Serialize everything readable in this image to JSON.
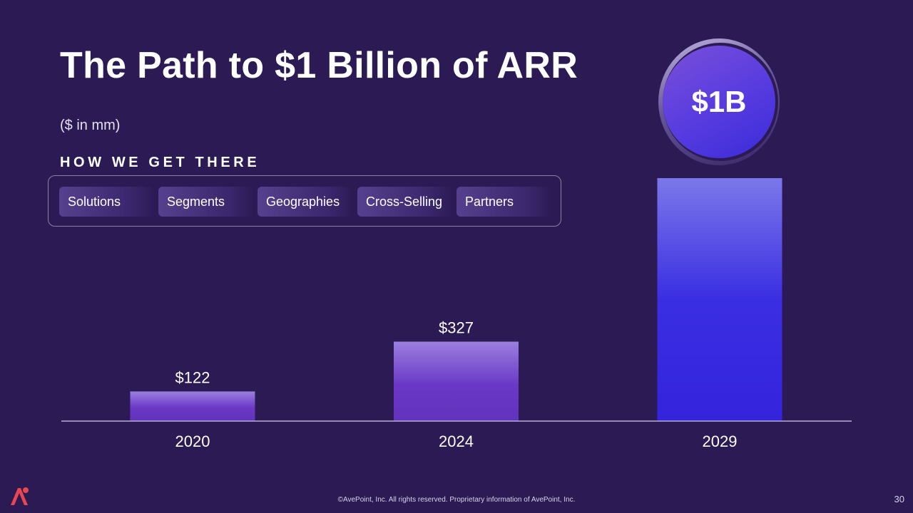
{
  "slide": {
    "title": "The Path to $1 Billion of ARR",
    "subtitle": "($ in mm)",
    "section_label": "HOW WE GET THERE",
    "levers": [
      "Solutions",
      "Segments",
      "Geographies",
      "Cross-Selling",
      "Partners"
    ],
    "badge": "$1B",
    "footer": "©AvePoint, Inc. All rights reserved. Proprietary information of AvePoint, Inc.",
    "page_number": "30"
  },
  "colors": {
    "background": "#2c1a55",
    "bar_small": "#6a35c4",
    "bar_large": "#3a2be0",
    "logo_accent": "#e8474f"
  },
  "chart_data": {
    "type": "bar",
    "categories": [
      "2020",
      "2024",
      "2029"
    ],
    "values": [
      122,
      327,
      1000
    ],
    "data_labels": [
      "$122",
      "$327",
      ""
    ],
    "ylim": [
      0,
      1000
    ],
    "grid": false,
    "title": "",
    "xlabel": "",
    "ylabel": ""
  }
}
